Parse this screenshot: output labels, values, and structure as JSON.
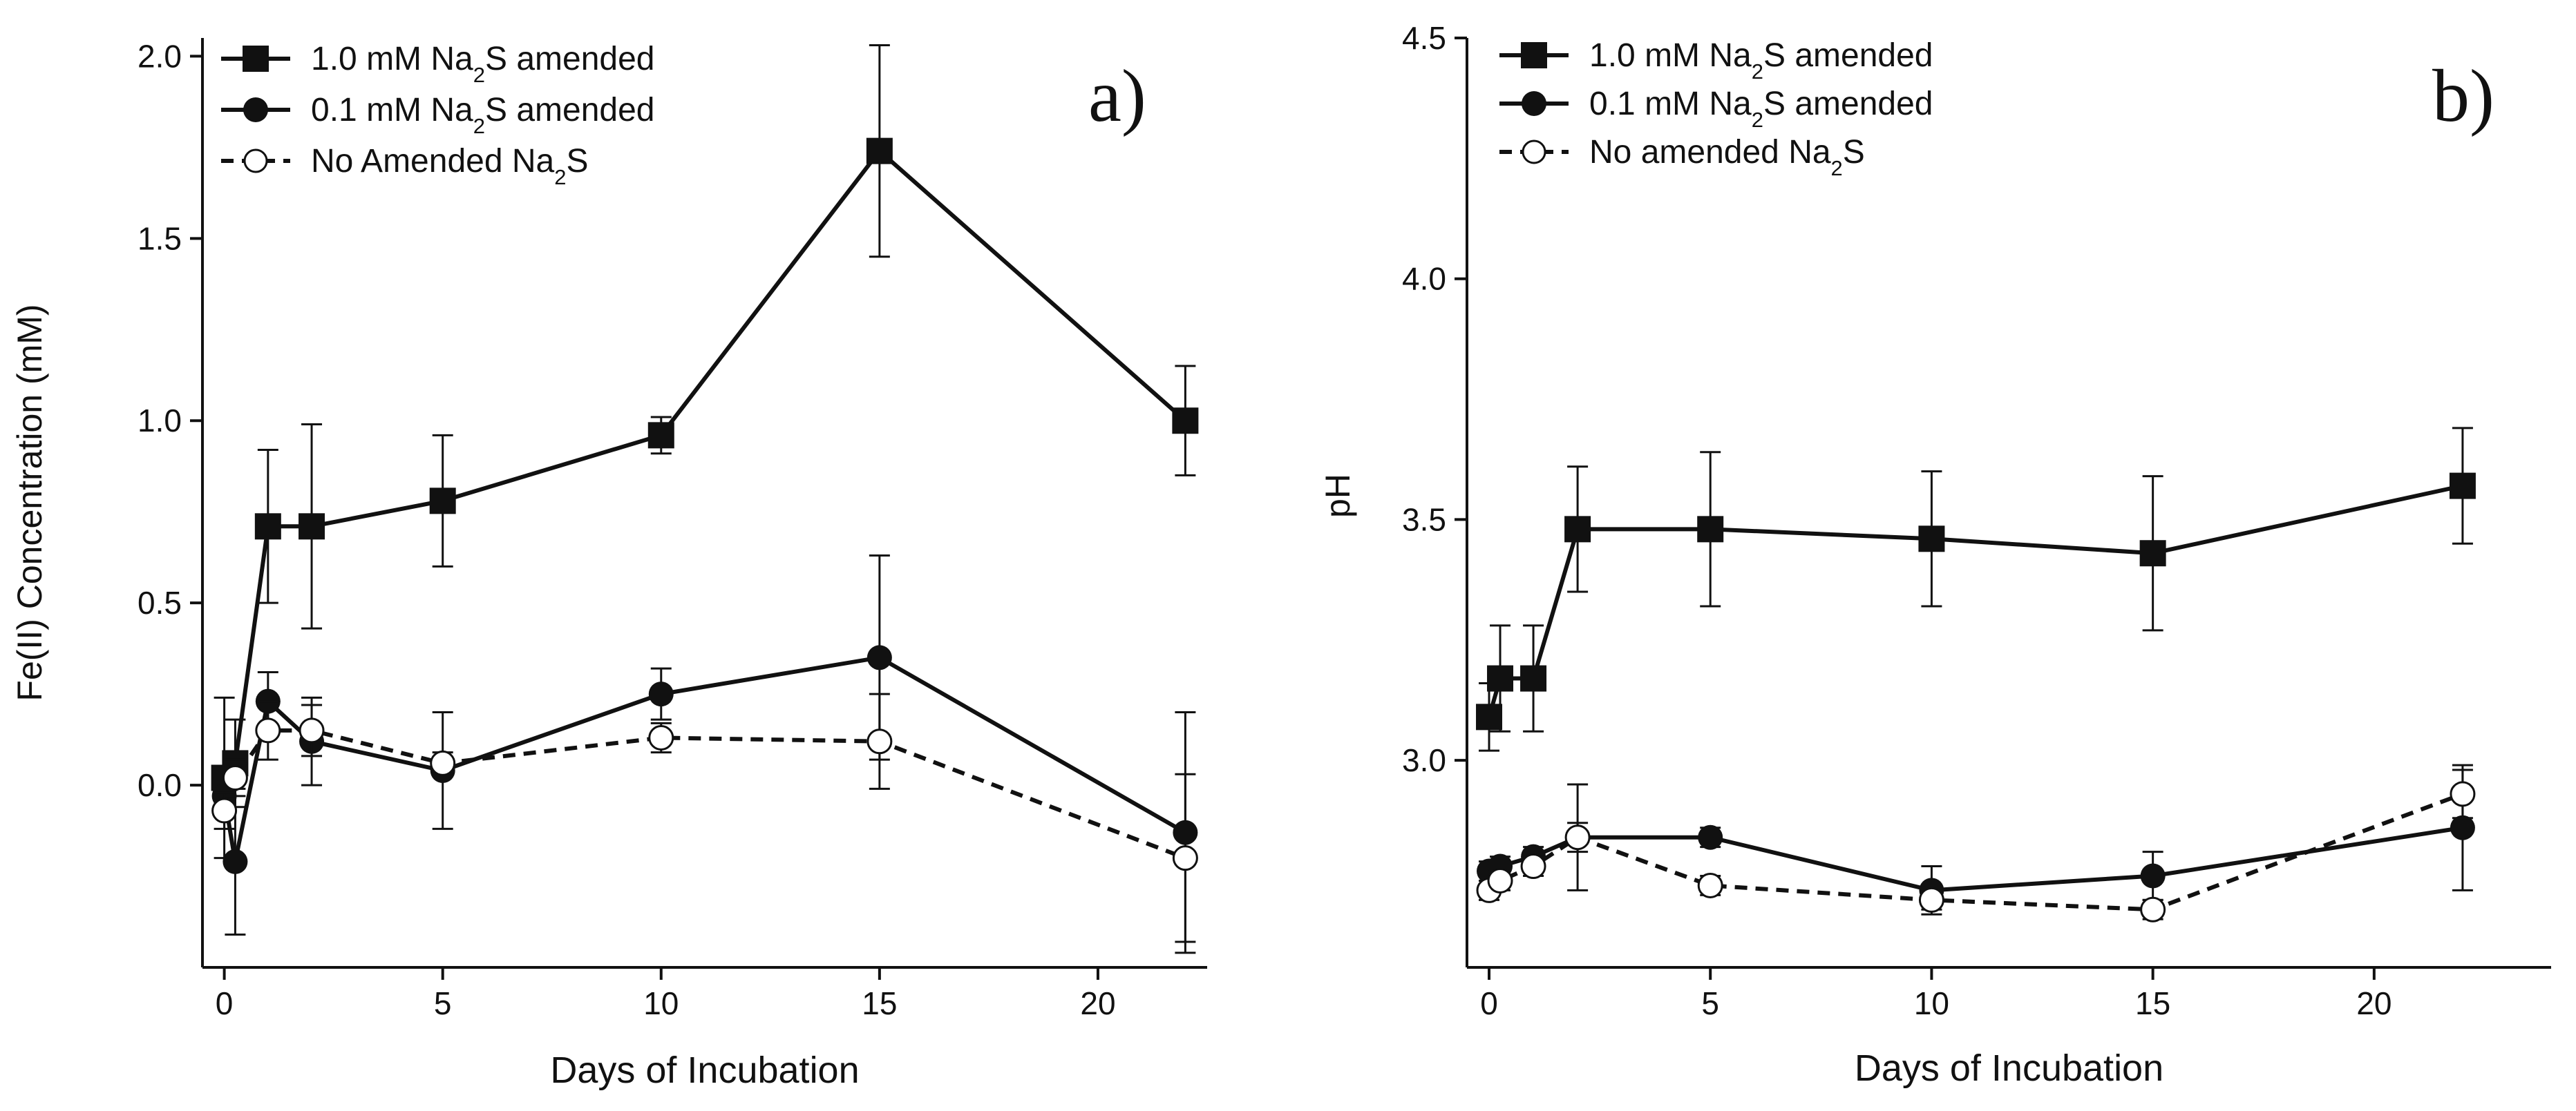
{
  "chart_data": [
    {
      "type": "line",
      "panel_label": "a)",
      "ylabel": "Fe(II) Concentration (mM)",
      "xlabel": "Days of Incubation",
      "xlim": [
        -0.5,
        22.5
      ],
      "ylim": [
        -0.5,
        2.05
      ],
      "xticks": [
        0,
        5,
        10,
        15,
        20
      ],
      "yticks": [
        0.0,
        0.5,
        1.0,
        1.5,
        2.0
      ],
      "ytick_labels": [
        "0.0",
        "0.5",
        "1.0",
        "1.5",
        "2.0"
      ],
      "legend_position": "top-left",
      "series": [
        {
          "legend_main": "1.0 mM Na",
          "legend_sub": "2",
          "legend_tail": "S amended",
          "marker": "square",
          "line": "solid",
          "points": [
            {
              "x": 0,
              "y": 0.02,
              "err": 0.22
            },
            {
              "x": 0.25,
              "y": 0.06,
              "err": 0.12
            },
            {
              "x": 1,
              "y": 0.71,
              "err": 0.21
            },
            {
              "x": 2,
              "y": 0.71,
              "err": 0.28
            },
            {
              "x": 5,
              "y": 0.78,
              "err": 0.18
            },
            {
              "x": 10,
              "y": 0.96,
              "err": 0.05
            },
            {
              "x": 15,
              "y": 1.74,
              "err": 0.29
            },
            {
              "x": 22,
              "y": 1.0,
              "err": 0.15
            }
          ]
        },
        {
          "legend_main": "0.1 mM Na",
          "legend_sub": "2",
          "legend_tail": "S amended",
          "marker": "circle",
          "line": "solid",
          "points": [
            {
              "x": 0,
              "y": -0.03,
              "err": 0.05
            },
            {
              "x": 0.25,
              "y": -0.21,
              "err": 0.2
            },
            {
              "x": 1,
              "y": 0.23,
              "err": 0.08
            },
            {
              "x": 2,
              "y": 0.12,
              "err": 0.12
            },
            {
              "x": 5,
              "y": 0.04,
              "err": 0.16
            },
            {
              "x": 10,
              "y": 0.25,
              "err": 0.07
            },
            {
              "x": 15,
              "y": 0.35,
              "err": 0.28
            },
            {
              "x": 22,
              "y": -0.13,
              "err": 0.33
            }
          ]
        },
        {
          "legend_main": "No Amended Na",
          "legend_sub": "2",
          "legend_tail": "S",
          "marker": "open-circle",
          "line": "dashed",
          "points": [
            {
              "x": 0,
              "y": -0.07,
              "err": 0.05
            },
            {
              "x": 0.25,
              "y": 0.02,
              "err": 0.05
            },
            {
              "x": 1,
              "y": 0.15,
              "err": 0.08
            },
            {
              "x": 2,
              "y": 0.15,
              "err": 0.07
            },
            {
              "x": 5,
              "y": 0.06,
              "err": 0.03
            },
            {
              "x": 10,
              "y": 0.13,
              "err": 0.04
            },
            {
              "x": 15,
              "y": 0.12,
              "err": 0.13
            },
            {
              "x": 22,
              "y": -0.2,
              "err": 0.23
            }
          ]
        }
      ]
    },
    {
      "type": "line",
      "panel_label": "b)",
      "ylabel": "pH",
      "xlabel": "Days of Incubation",
      "xlim": [
        -0.5,
        24
      ],
      "ylim": [
        2.57,
        4.5
      ],
      "xticks": [
        0,
        5,
        10,
        15,
        20
      ],
      "yticks": [
        3.0,
        3.5,
        4.0,
        4.5
      ],
      "ytick_labels": [
        "3.0",
        "3.5",
        "4.0",
        "4.5"
      ],
      "legend_position": "top-left",
      "series": [
        {
          "legend_main": "1.0 mM Na",
          "legend_sub": "2",
          "legend_tail": "S amended",
          "marker": "square",
          "line": "solid",
          "points": [
            {
              "x": 0,
              "y": 3.09,
              "err": 0.07
            },
            {
              "x": 0.25,
              "y": 3.17,
              "err": 0.11
            },
            {
              "x": 1,
              "y": 3.17,
              "err": 0.11
            },
            {
              "x": 2,
              "y": 3.48,
              "err": 0.13
            },
            {
              "x": 5,
              "y": 3.48,
              "err": 0.16
            },
            {
              "x": 10,
              "y": 3.46,
              "err": 0.14
            },
            {
              "x": 15,
              "y": 3.43,
              "err": 0.16
            },
            {
              "x": 22,
              "y": 3.57,
              "err": 0.12
            }
          ]
        },
        {
          "legend_main": "0.1 mM Na",
          "legend_sub": "2",
          "legend_tail": "S amended",
          "marker": "circle",
          "line": "solid",
          "points": [
            {
              "x": 0,
              "y": 2.77,
              "err": 0.02
            },
            {
              "x": 0.25,
              "y": 2.78,
              "err": 0.02
            },
            {
              "x": 1,
              "y": 2.8,
              "err": 0.02
            },
            {
              "x": 2,
              "y": 2.84,
              "err": 0.11
            },
            {
              "x": 5,
              "y": 2.84,
              "err": 0.02
            },
            {
              "x": 10,
              "y": 2.73,
              "err": 0.05
            },
            {
              "x": 15,
              "y": 2.76,
              "err": 0.05
            },
            {
              "x": 22,
              "y": 2.86,
              "err": 0.13
            }
          ]
        },
        {
          "legend_main": "No amended Na",
          "legend_sub": "2",
          "legend_tail": "S",
          "marker": "open-circle",
          "line": "dashed",
          "points": [
            {
              "x": 0,
              "y": 2.73,
              "err": 0.02
            },
            {
              "x": 0.25,
              "y": 2.75,
              "err": 0.02
            },
            {
              "x": 1,
              "y": 2.78,
              "err": 0.02
            },
            {
              "x": 2,
              "y": 2.84,
              "err": 0.03
            },
            {
              "x": 5,
              "y": 2.74,
              "err": 0.02
            },
            {
              "x": 10,
              "y": 2.71,
              "err": 0.02
            },
            {
              "x": 15,
              "y": 2.69,
              "err": 0.02
            },
            {
              "x": 22,
              "y": 2.93,
              "err": 0.05
            }
          ]
        }
      ]
    }
  ]
}
